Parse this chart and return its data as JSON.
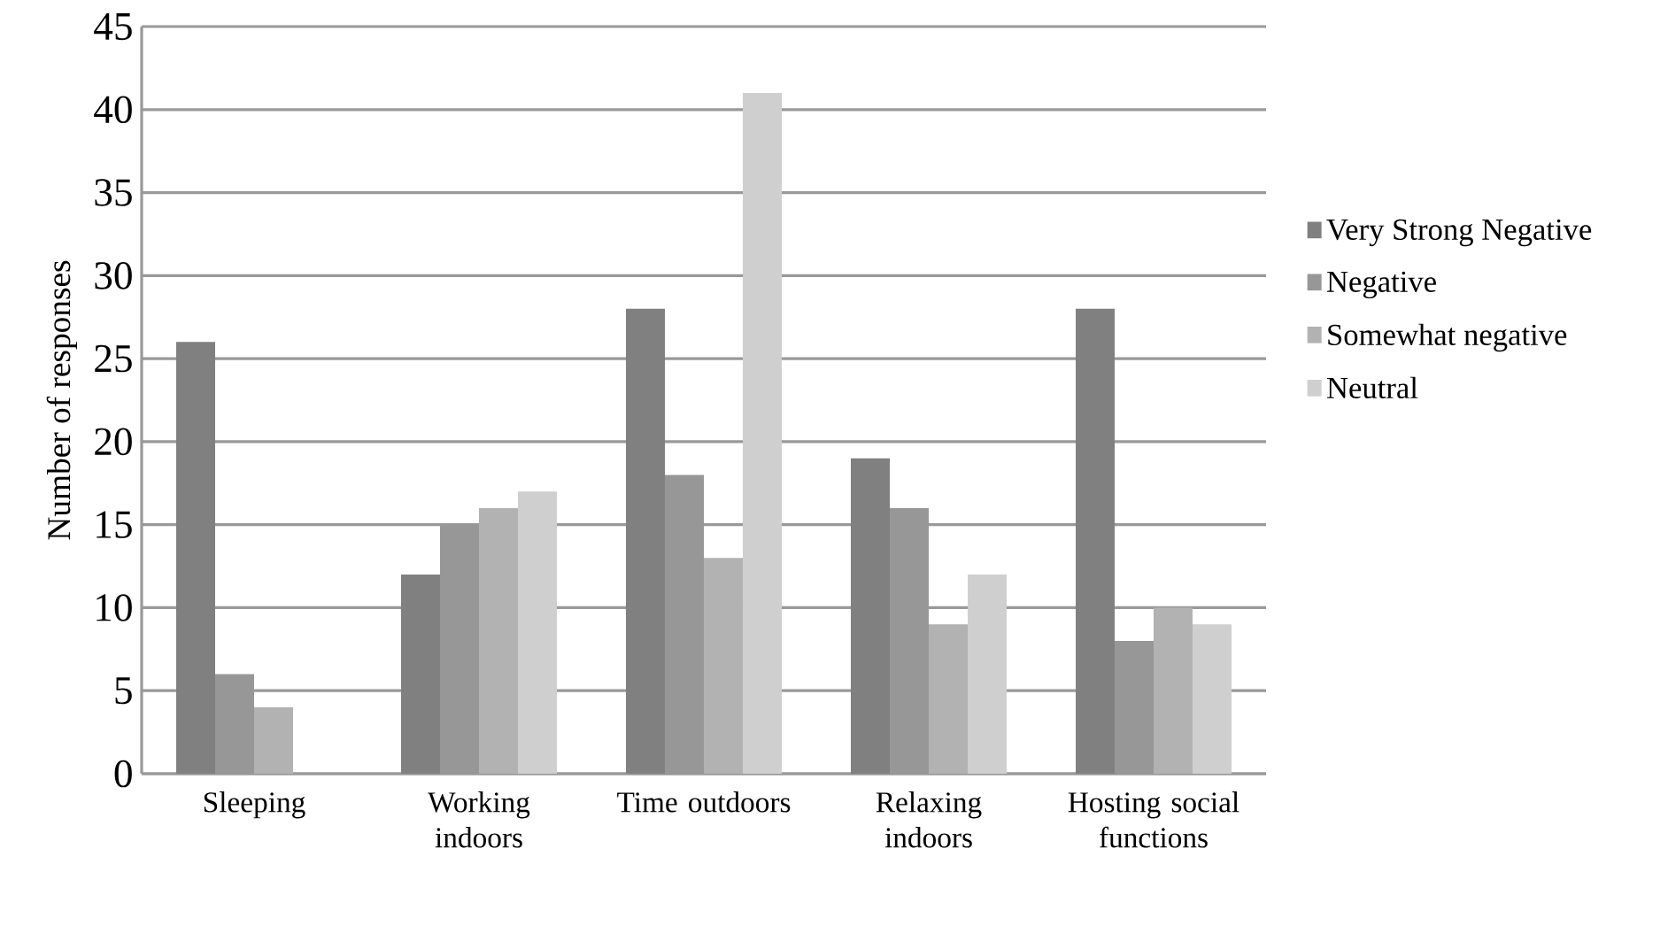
{
  "chart_data": {
    "type": "bar",
    "ylabel": "Number of responses",
    "categories": [
      "Sleeping",
      "Working indoors",
      "Time outdoors",
      "Relaxing indoors",
      "Hosting social functions"
    ],
    "series": [
      {
        "name": "Very Strong Negative",
        "color": "#808080",
        "values": [
          26,
          12,
          28,
          19,
          28
        ]
      },
      {
        "name": "Negative",
        "color": "#979797",
        "values": [
          6,
          15,
          18,
          16,
          8
        ]
      },
      {
        "name": "Somewhat negative",
        "color": "#b2b2b2",
        "values": [
          4,
          16,
          13,
          9,
          10
        ]
      },
      {
        "name": "Neutral",
        "color": "#cfcfcf",
        "values": [
          0,
          17,
          41,
          12,
          9
        ]
      }
    ],
    "ylim": [
      0,
      45
    ],
    "yticks": [
      0,
      5,
      10,
      15,
      20,
      25,
      30,
      35,
      40,
      45
    ],
    "grid": "y",
    "legend": "right"
  }
}
